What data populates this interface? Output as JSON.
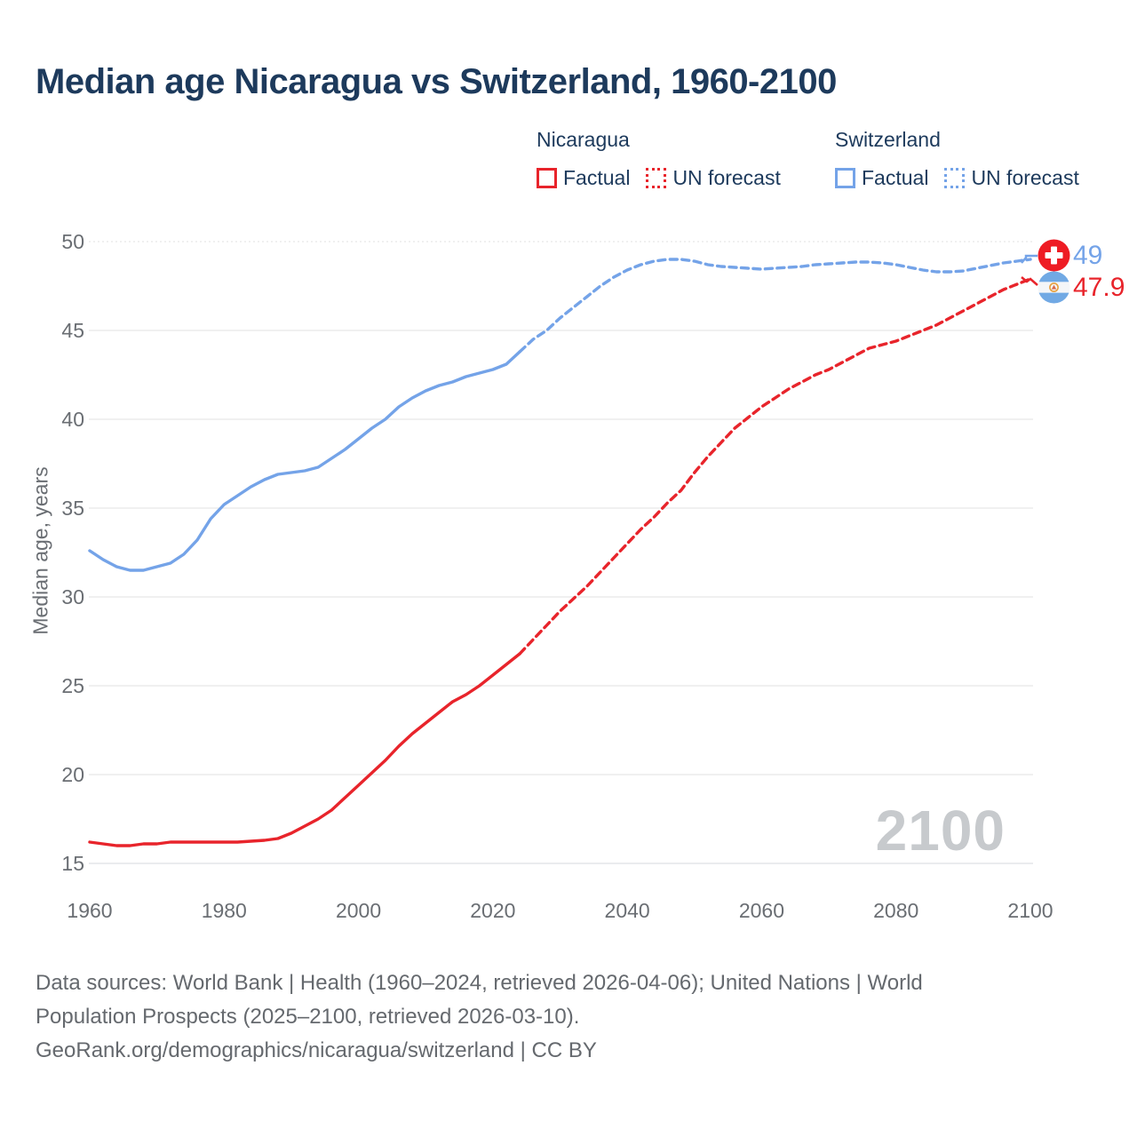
{
  "title": "Median age Nicaragua vs Switzerland, 1960-2100",
  "legend": {
    "groups": [
      {
        "name": "Nicaragua",
        "color": "#e8242b",
        "items": [
          {
            "label": "Factual",
            "style": "solid"
          },
          {
            "label": "UN forecast",
            "style": "dotted"
          }
        ]
      },
      {
        "name": "Switzerland",
        "color": "#74a3e8",
        "items": [
          {
            "label": "Factual",
            "style": "solid"
          },
          {
            "label": "UN forecast",
            "style": "dotted"
          }
        ]
      }
    ]
  },
  "watermark": "2100",
  "end_labels": {
    "switzerland": {
      "value": "49",
      "flag": "switzerland-flag-icon"
    },
    "nicaragua": {
      "value": "47.9",
      "flag": "nicaragua-flag-icon"
    }
  },
  "footer": {
    "sources": "Data sources: World Bank | Health (1960–2024, retrieved 2026-04-06); United Nations | World Population Prospects (2025–2100, retrieved 2026-03-10).",
    "attribution": "GeoRank.org/demographics/nicaragua/switzerland | CC BY"
  },
  "chart_data": {
    "type": "line",
    "title": "Median age Nicaragua vs Switzerland, 1960-2100",
    "xlabel": "",
    "ylabel": "Median age, years",
    "xlim": [
      1960,
      2100
    ],
    "ylim": [
      15,
      50
    ],
    "xticks": [
      1960,
      1980,
      2000,
      2020,
      2040,
      2060,
      2080,
      2100
    ],
    "yticks": [
      15,
      20,
      25,
      30,
      35,
      40,
      45,
      50
    ],
    "grid": true,
    "legend_position": "top-right",
    "colors": {
      "nicaragua": "#e8242b",
      "switzerland": "#74a3e8",
      "grid": "#ececec",
      "axis_text": "#6a6e73"
    },
    "series": [
      {
        "name": "Switzerland Factual",
        "color": "#74a3e8",
        "style": "solid",
        "points": [
          [
            1960,
            32.6
          ],
          [
            1962,
            32.1
          ],
          [
            1964,
            31.7
          ],
          [
            1966,
            31.5
          ],
          [
            1968,
            31.5
          ],
          [
            1970,
            31.7
          ],
          [
            1972,
            31.9
          ],
          [
            1974,
            32.4
          ],
          [
            1976,
            33.2
          ],
          [
            1978,
            34.4
          ],
          [
            1980,
            35.2
          ],
          [
            1982,
            35.7
          ],
          [
            1984,
            36.2
          ],
          [
            1986,
            36.6
          ],
          [
            1988,
            36.9
          ],
          [
            1990,
            37.0
          ],
          [
            1992,
            37.1
          ],
          [
            1994,
            37.3
          ],
          [
            1996,
            37.8
          ],
          [
            1998,
            38.3
          ],
          [
            2000,
            38.9
          ],
          [
            2002,
            39.5
          ],
          [
            2004,
            40.0
          ],
          [
            2006,
            40.7
          ],
          [
            2008,
            41.2
          ],
          [
            2010,
            41.6
          ],
          [
            2012,
            41.9
          ],
          [
            2014,
            42.1
          ],
          [
            2016,
            42.4
          ],
          [
            2018,
            42.6
          ],
          [
            2020,
            42.8
          ],
          [
            2022,
            43.1
          ],
          [
            2024,
            43.8
          ]
        ]
      },
      {
        "name": "Switzerland UN forecast",
        "color": "#74a3e8",
        "style": "dashed",
        "points": [
          [
            2024,
            43.8
          ],
          [
            2026,
            44.5
          ],
          [
            2028,
            45.0
          ],
          [
            2030,
            45.7
          ],
          [
            2032,
            46.3
          ],
          [
            2034,
            46.9
          ],
          [
            2036,
            47.5
          ],
          [
            2038,
            48.0
          ],
          [
            2040,
            48.4
          ],
          [
            2042,
            48.7
          ],
          [
            2044,
            48.9
          ],
          [
            2046,
            49.0
          ],
          [
            2048,
            49.0
          ],
          [
            2050,
            48.9
          ],
          [
            2052,
            48.7
          ],
          [
            2054,
            48.6
          ],
          [
            2056,
            48.55
          ],
          [
            2058,
            48.5
          ],
          [
            2060,
            48.45
          ],
          [
            2062,
            48.5
          ],
          [
            2064,
            48.55
          ],
          [
            2066,
            48.6
          ],
          [
            2068,
            48.7
          ],
          [
            2070,
            48.75
          ],
          [
            2072,
            48.8
          ],
          [
            2074,
            48.85
          ],
          [
            2076,
            48.85
          ],
          [
            2078,
            48.8
          ],
          [
            2080,
            48.7
          ],
          [
            2082,
            48.55
          ],
          [
            2084,
            48.4
          ],
          [
            2086,
            48.3
          ],
          [
            2088,
            48.3
          ],
          [
            2090,
            48.35
          ],
          [
            2092,
            48.5
          ],
          [
            2094,
            48.65
          ],
          [
            2096,
            48.8
          ],
          [
            2098,
            48.9
          ],
          [
            2100,
            49.0
          ]
        ]
      },
      {
        "name": "Nicaragua Factual",
        "color": "#e8242b",
        "style": "solid",
        "points": [
          [
            1960,
            16.2
          ],
          [
            1962,
            16.1
          ],
          [
            1964,
            16.0
          ],
          [
            1966,
            16.0
          ],
          [
            1968,
            16.1
          ],
          [
            1970,
            16.1
          ],
          [
            1972,
            16.2
          ],
          [
            1974,
            16.2
          ],
          [
            1976,
            16.2
          ],
          [
            1978,
            16.2
          ],
          [
            1980,
            16.2
          ],
          [
            1982,
            16.2
          ],
          [
            1984,
            16.25
          ],
          [
            1986,
            16.3
          ],
          [
            1988,
            16.4
          ],
          [
            1990,
            16.7
          ],
          [
            1992,
            17.1
          ],
          [
            1994,
            17.5
          ],
          [
            1996,
            18.0
          ],
          [
            1998,
            18.7
          ],
          [
            2000,
            19.4
          ],
          [
            2002,
            20.1
          ],
          [
            2004,
            20.8
          ],
          [
            2006,
            21.6
          ],
          [
            2008,
            22.3
          ],
          [
            2010,
            22.9
          ],
          [
            2012,
            23.5
          ],
          [
            2014,
            24.1
          ],
          [
            2016,
            24.5
          ],
          [
            2018,
            25.0
          ],
          [
            2020,
            25.6
          ],
          [
            2022,
            26.2
          ],
          [
            2024,
            26.8
          ]
        ]
      },
      {
        "name": "Nicaragua UN forecast",
        "color": "#e8242b",
        "style": "dashed",
        "points": [
          [
            2024,
            26.8
          ],
          [
            2026,
            27.6
          ],
          [
            2028,
            28.4
          ],
          [
            2030,
            29.2
          ],
          [
            2032,
            29.9
          ],
          [
            2034,
            30.6
          ],
          [
            2036,
            31.4
          ],
          [
            2038,
            32.2
          ],
          [
            2040,
            33.0
          ],
          [
            2042,
            33.8
          ],
          [
            2044,
            34.5
          ],
          [
            2046,
            35.3
          ],
          [
            2048,
            36.0
          ],
          [
            2050,
            37.0
          ],
          [
            2052,
            37.9
          ],
          [
            2054,
            38.7
          ],
          [
            2056,
            39.5
          ],
          [
            2058,
            40.1
          ],
          [
            2060,
            40.7
          ],
          [
            2062,
            41.2
          ],
          [
            2064,
            41.7
          ],
          [
            2066,
            42.1
          ],
          [
            2068,
            42.5
          ],
          [
            2070,
            42.8
          ],
          [
            2072,
            43.2
          ],
          [
            2074,
            43.6
          ],
          [
            2076,
            44.0
          ],
          [
            2078,
            44.2
          ],
          [
            2080,
            44.4
          ],
          [
            2082,
            44.7
          ],
          [
            2084,
            45.0
          ],
          [
            2086,
            45.3
          ],
          [
            2088,
            45.7
          ],
          [
            2090,
            46.1
          ],
          [
            2092,
            46.5
          ],
          [
            2094,
            46.9
          ],
          [
            2096,
            47.3
          ],
          [
            2098,
            47.6
          ],
          [
            2100,
            47.9
          ]
        ]
      }
    ],
    "end_annotations": [
      {
        "series": "Switzerland",
        "label": "49"
      },
      {
        "series": "Nicaragua",
        "label": "47.9"
      }
    ]
  }
}
